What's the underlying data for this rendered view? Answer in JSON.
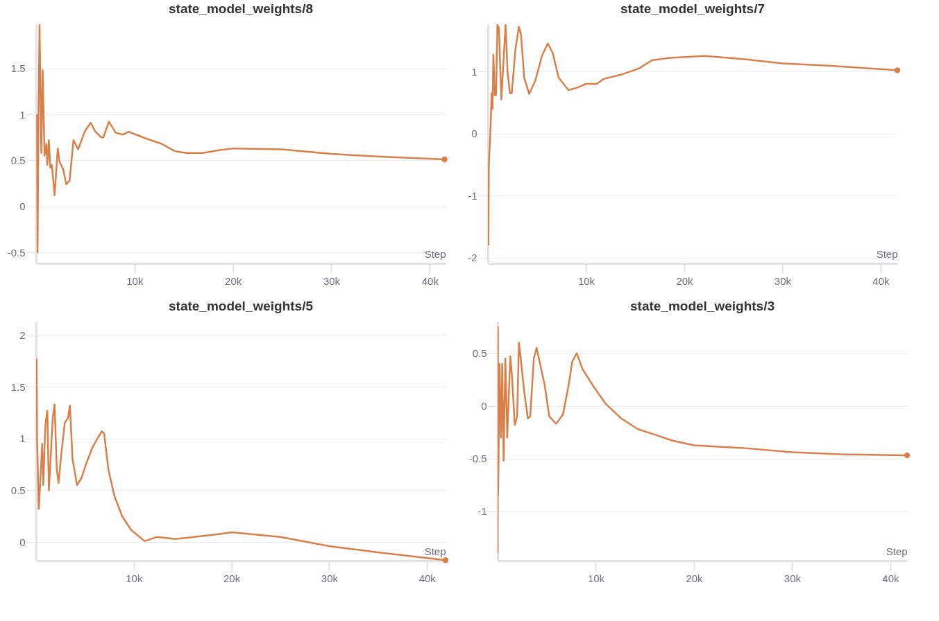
{
  "chart_data": [
    {
      "type": "line",
      "title": "state_model_weights/8",
      "xlabel": "Step",
      "grid": "y",
      "xlim": [
        0,
        41600
      ],
      "ylim": [
        -0.62,
        1.98
      ],
      "yticks": [
        -0.5,
        0,
        0.5,
        1,
        1.5
      ],
      "xticks": [
        {
          "value": 10000,
          "label": "10k"
        },
        {
          "value": 20000,
          "label": "20k"
        },
        {
          "value": 30000,
          "label": "30k"
        },
        {
          "value": 40000,
          "label": "40k"
        }
      ],
      "series": [
        {
          "color": "#d9804a",
          "x": [
            100,
            150,
            250,
            350,
            530,
            670,
            860,
            1050,
            1140,
            1300,
            1440,
            1600,
            1880,
            2200,
            2400,
            2760,
            3070,
            3400,
            3800,
            4270,
            4970,
            5550,
            5970,
            6600,
            6830,
            7400,
            8100,
            8800,
            9430,
            11100,
            12750,
            14100,
            15300,
            16900,
            18600,
            20000,
            25000,
            30000,
            35000,
            41500
          ],
          "values": [
            1.0,
            -0.5,
            1.0,
            1.98,
            0.58,
            1.48,
            0.55,
            0.68,
            0.45,
            0.72,
            0.42,
            0.45,
            0.12,
            0.63,
            0.48,
            0.4,
            0.24,
            0.28,
            0.72,
            0.62,
            0.82,
            0.91,
            0.82,
            0.75,
            0.75,
            0.92,
            0.8,
            0.78,
            0.81,
            0.74,
            0.68,
            0.6,
            0.58,
            0.58,
            0.61,
            0.63,
            0.62,
            0.57,
            0.54,
            0.51
          ]
        }
      ]
    },
    {
      "type": "line",
      "title": "state_model_weights/7",
      "xlabel": "Step",
      "grid": "y",
      "xlim": [
        0,
        41700
      ],
      "ylim": [
        -2.09,
        1.76
      ],
      "yticks": [
        -2,
        -1,
        0,
        1
      ],
      "xticks": [
        {
          "value": 10000,
          "label": "10k"
        },
        {
          "value": 20000,
          "label": "20k"
        },
        {
          "value": 30000,
          "label": "30k"
        },
        {
          "value": 40000,
          "label": "40k"
        }
      ],
      "series": [
        {
          "color": "#d9804a",
          "x": [
            50,
            100,
            270,
            380,
            470,
            560,
            700,
            830,
            970,
            1120,
            1370,
            1600,
            1800,
            2000,
            2250,
            2430,
            2800,
            3150,
            3370,
            3700,
            4200,
            4830,
            5500,
            6100,
            6600,
            7200,
            8200,
            9100,
            10000,
            11100,
            11800,
            13600,
            15400,
            16700,
            18500,
            22000,
            26000,
            30000,
            35000,
            41700
          ],
          "values": [
            -1.8,
            -0.5,
            0.1,
            0.65,
            0.4,
            1.27,
            0.62,
            0.62,
            1.75,
            1.7,
            0.55,
            1.2,
            1.76,
            1.0,
            0.65,
            0.65,
            1.35,
            1.72,
            1.6,
            0.9,
            0.64,
            0.85,
            1.25,
            1.45,
            1.3,
            0.9,
            0.7,
            0.74,
            0.8,
            0.8,
            0.88,
            0.95,
            1.05,
            1.18,
            1.22,
            1.25,
            1.2,
            1.13,
            1.09,
            1.02
          ]
        }
      ]
    },
    {
      "type": "line",
      "title": "state_model_weights/5",
      "xlabel": "Step",
      "grid": "y",
      "xlim": [
        0,
        41900
      ],
      "ylim": [
        -0.18,
        2.13
      ],
      "yticks": [
        0,
        0.5,
        1,
        1.5,
        2
      ],
      "xticks": [
        {
          "value": 10000,
          "label": "10k"
        },
        {
          "value": 20000,
          "label": "20k"
        },
        {
          "value": 30000,
          "label": "30k"
        },
        {
          "value": 40000,
          "label": "40k"
        }
      ],
      "series": [
        {
          "color": "#d9804a",
          "x": [
            50,
            100,
            280,
            440,
            620,
            740,
            880,
            970,
            1150,
            1310,
            1540,
            1700,
            1890,
            2120,
            2300,
            2580,
            2930,
            3270,
            3460,
            3730,
            4190,
            4650,
            5100,
            5700,
            6270,
            6730,
            6960,
            7400,
            8000,
            8800,
            9700,
            11100,
            12400,
            14300,
            16200,
            18900,
            20000,
            25000,
            30000,
            35000,
            41900
          ],
          "values": [
            1.77,
            1.0,
            0.32,
            0.6,
            0.95,
            0.55,
            0.95,
            1.15,
            1.27,
            0.5,
            0.9,
            1.2,
            1.33,
            0.7,
            0.57,
            0.85,
            1.15,
            1.2,
            1.32,
            0.8,
            0.55,
            0.62,
            0.75,
            0.9,
            1.0,
            1.07,
            1.05,
            0.7,
            0.45,
            0.25,
            0.12,
            0.01,
            0.05,
            0.03,
            0.05,
            0.08,
            0.095,
            0.05,
            -0.04,
            -0.1,
            -0.175
          ]
        }
      ]
    },
    {
      "type": "line",
      "title": "state_model_weights/3",
      "xlabel": "Step",
      "grid": "y",
      "xlim": [
        0,
        41700
      ],
      "ylim": [
        -1.47,
        0.8
      ],
      "yticks": [
        -1,
        -0.5,
        0,
        0.5
      ],
      "xticks": [
        {
          "value": 10000,
          "label": "10k"
        },
        {
          "value": 20000,
          "label": "20k"
        },
        {
          "value": 30000,
          "label": "30k"
        },
        {
          "value": 40000,
          "label": "40k"
        }
      ],
      "series": [
        {
          "color": "#d9804a",
          "x": [
            0,
            30,
            50,
            100,
            190,
            350,
            470,
            610,
            790,
            980,
            1290,
            1450,
            1750,
            1990,
            2170,
            2380,
            2690,
            3080,
            3320,
            3690,
            3970,
            4320,
            4790,
            5260,
            5960,
            6660,
            7240,
            7600,
            8060,
            8640,
            9800,
            11000,
            12600,
            14250,
            15900,
            17800,
            20000,
            25000,
            30000,
            35000,
            41700
          ],
          "values": [
            -1.4,
            0.75,
            -0.85,
            -0.5,
            0.4,
            -0.3,
            0.4,
            -0.52,
            0.45,
            -0.3,
            0.47,
            0.3,
            -0.18,
            -0.1,
            0.6,
            0.43,
            0.15,
            -0.12,
            -0.1,
            0.45,
            0.55,
            0.4,
            0.2,
            -0.1,
            -0.17,
            -0.08,
            0.2,
            0.42,
            0.5,
            0.35,
            0.18,
            0.02,
            -0.12,
            -0.22,
            -0.27,
            -0.33,
            -0.375,
            -0.4,
            -0.44,
            -0.46,
            -0.47
          ]
        }
      ]
    }
  ]
}
